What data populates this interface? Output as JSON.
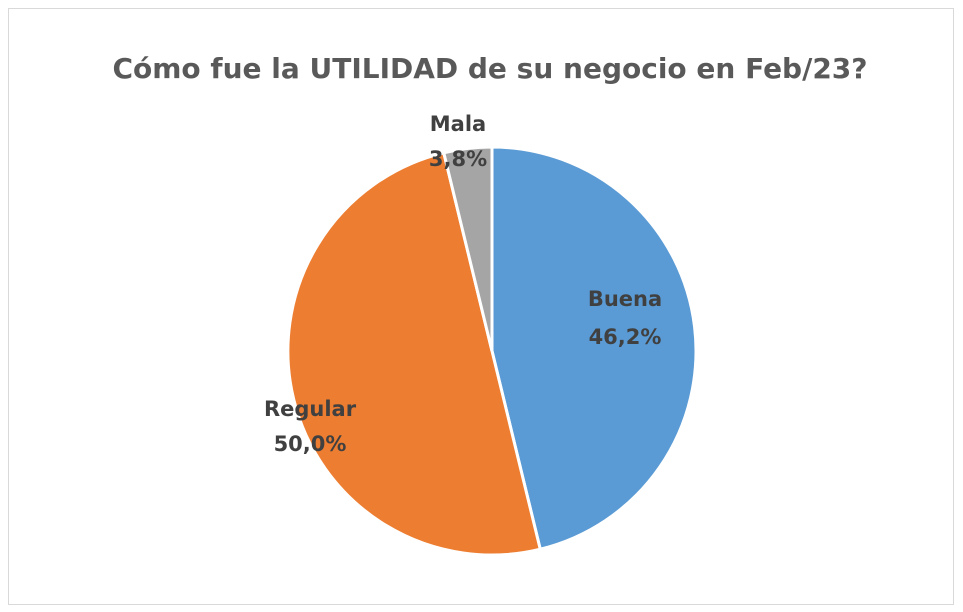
{
  "chart_data": {
    "type": "pie",
    "title": "Cómo fue la UTILIDAD de su negocio en Feb/23?",
    "categories": [
      "Buena",
      "Regular",
      "Mala"
    ],
    "values": [
      46.2,
      50.0,
      3.8
    ],
    "value_labels": [
      "46,2%",
      "50,0%",
      "3,8%"
    ],
    "colors": [
      "#5b9bd5",
      "#ed7d31",
      "#a5a5a5"
    ]
  }
}
